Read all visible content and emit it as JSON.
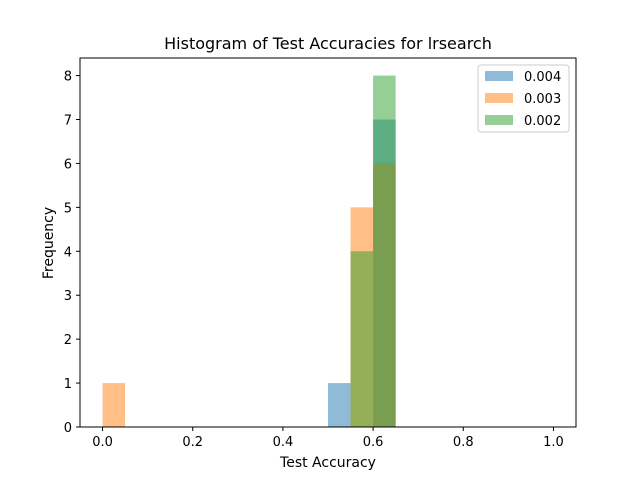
{
  "chart_data": {
    "type": "bar",
    "title": "Histogram of Test Accuracies for lrsearch",
    "xlabel": "Test Accuracy",
    "ylabel": "Frequency",
    "xlim": [
      -0.05,
      1.05
    ],
    "ylim": [
      0,
      8.4
    ],
    "xticks": [
      0.0,
      0.2,
      0.4,
      0.6,
      0.8,
      1.0
    ],
    "xtick_labels": [
      "0.0",
      "0.2",
      "0.4",
      "0.6",
      "0.8",
      "1.0"
    ],
    "yticks": [
      0,
      1,
      2,
      3,
      4,
      5,
      6,
      7,
      8
    ],
    "ytick_labels": [
      "0",
      "1",
      "2",
      "3",
      "4",
      "5",
      "6",
      "7",
      "8"
    ],
    "bin_edges": [
      0.0,
      0.05,
      0.1,
      0.15,
      0.2,
      0.25,
      0.3,
      0.35,
      0.4,
      0.45,
      0.5,
      0.55,
      0.6,
      0.65,
      0.7,
      0.75,
      0.8,
      0.85,
      0.9,
      0.95,
      1.0
    ],
    "grid": false,
    "legend_position": "top-right",
    "alpha": 0.5,
    "series": [
      {
        "name": "0.004",
        "color": "#1f77b4",
        "counts": [
          0,
          0,
          0,
          0,
          0,
          0,
          0,
          0,
          0,
          0,
          1,
          0,
          7,
          0,
          0,
          0,
          0,
          0,
          0,
          0
        ]
      },
      {
        "name": "0.003",
        "color": "#ff7f0e",
        "counts": [
          1,
          0,
          0,
          0,
          0,
          0,
          0,
          0,
          0,
          0,
          0,
          5,
          6,
          0,
          0,
          0,
          0,
          0,
          0,
          0
        ]
      },
      {
        "name": "0.002",
        "color": "#2ca02c",
        "counts": [
          0,
          0,
          0,
          0,
          0,
          0,
          0,
          0,
          0,
          0,
          0,
          4,
          8,
          0,
          0,
          0,
          0,
          0,
          0,
          0
        ]
      }
    ]
  }
}
